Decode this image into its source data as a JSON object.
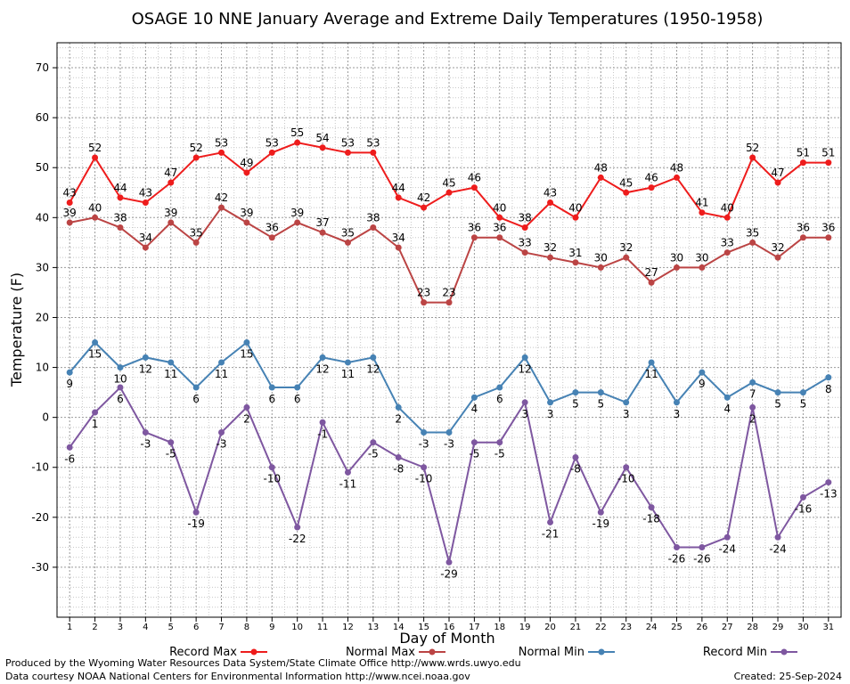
{
  "chart_data": {
    "type": "line",
    "title": "OSAGE 10 NNE January Average and Extreme Daily Temperatures (1950-1958)",
    "xlabel": "Day of Month",
    "ylabel": "Temperature (F)",
    "ylim": [
      -40,
      75
    ],
    "yticks": [
      -30,
      -20,
      -10,
      0,
      10,
      20,
      30,
      40,
      50,
      60,
      70
    ],
    "x": [
      1,
      2,
      3,
      4,
      5,
      6,
      7,
      8,
      9,
      10,
      11,
      12,
      13,
      14,
      15,
      16,
      17,
      18,
      19,
      20,
      21,
      22,
      23,
      24,
      25,
      26,
      27,
      28,
      29,
      30,
      31
    ],
    "grid": true,
    "legend_position": "bottom",
    "series": [
      {
        "name": "Record Max",
        "color": "#ee1c1c",
        "values": [
          43,
          52,
          44,
          43,
          47,
          52,
          53,
          49,
          53,
          55,
          54,
          53,
          53,
          44,
          42,
          45,
          46,
          40,
          38,
          43,
          40,
          48,
          45,
          46,
          48,
          41,
          40,
          52,
          47,
          51,
          51
        ]
      },
      {
        "name": "Normal Max",
        "color": "#bb4444",
        "values": [
          39,
          40,
          38,
          34,
          39,
          35,
          42,
          39,
          36,
          39,
          37,
          35,
          38,
          34,
          23,
          23,
          36,
          36,
          33,
          32,
          31,
          30,
          32,
          27,
          30,
          30,
          33,
          35,
          32,
          36,
          36
        ]
      },
      {
        "name": "Normal Min",
        "color": "#4682b4",
        "values": [
          9,
          15,
          10,
          12,
          11,
          6,
          11,
          15,
          6,
          6,
          12,
          11,
          12,
          2,
          -3,
          -3,
          4,
          6,
          12,
          3,
          5,
          5,
          3,
          11,
          3,
          9,
          4,
          7,
          5,
          5,
          8
        ]
      },
      {
        "name": "Record Min",
        "color": "#7e57a0",
        "values": [
          -6,
          1,
          6,
          -3,
          -5,
          -19,
          -3,
          2,
          -10,
          -22,
          -1,
          -11,
          -5,
          -8,
          -10,
          -29,
          -5,
          -5,
          3,
          -21,
          -8,
          -19,
          -10,
          -18,
          -26,
          -26,
          -24,
          2,
          -24,
          -16,
          -13
        ]
      }
    ]
  },
  "footer": {
    "produced_by": "Produced by the Wyoming Water Resources Data System/State Climate Office http://www.wrds.uwyo.edu",
    "courtesy": "Data courtesy NOAA National Centers for Environmental Information http://www.ncei.noaa.gov",
    "created": "Created:  25-Sep-2024"
  }
}
